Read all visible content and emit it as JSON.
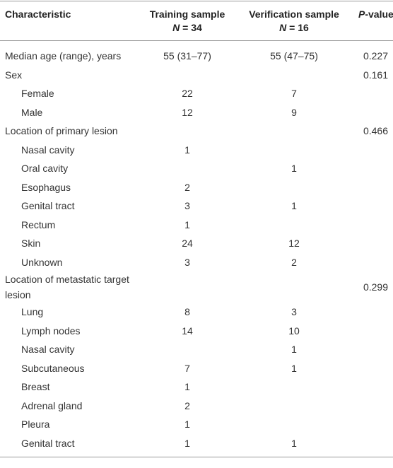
{
  "table": {
    "header": [
      {
        "title": "Characteristic"
      },
      {
        "title": "Training sample",
        "n_symbol": "N",
        "n_text": " = 34"
      },
      {
        "title": "Verification sample",
        "n_symbol": "N",
        "n_text": " = 16"
      },
      {
        "p_symbol": "P",
        "title": "-value"
      }
    ],
    "sections": [
      {
        "label": "Median age (range), years",
        "training": "55 (31–77)",
        "verification": "55 (47–75)",
        "p": "0.227"
      },
      {
        "label": "Sex",
        "p": "0.161",
        "items": [
          {
            "label": "Female",
            "training": "22",
            "verification": "7"
          },
          {
            "label": "Male",
            "training": "12",
            "verification": "9"
          }
        ]
      },
      {
        "label": "Location of primary lesion",
        "p": "0.466",
        "items": [
          {
            "label": "Nasal cavity",
            "training": "1"
          },
          {
            "label": "Oral cavity",
            "verification": "1"
          },
          {
            "label": "Esophagus",
            "training": "2"
          },
          {
            "label": "Genital tract",
            "training": "3",
            "verification": "1"
          },
          {
            "label": "Rectum",
            "training": "1"
          },
          {
            "label": "Skin",
            "training": "24",
            "verification": "12"
          },
          {
            "label": "Unknown",
            "training": "3",
            "verification": "2"
          }
        ]
      },
      {
        "label": "Location of metastatic target lesion",
        "p": "0.299",
        "items": [
          {
            "label": "Lung",
            "training": "8",
            "verification": "3"
          },
          {
            "label": "Lymph nodes",
            "training": "14",
            "verification": "10"
          },
          {
            "label": "Nasal cavity",
            "verification": "1"
          },
          {
            "label": "Subcutaneous",
            "training": "7",
            "verification": "1"
          },
          {
            "label": "Breast",
            "training": "1"
          },
          {
            "label": "Adrenal gland",
            "training": "2"
          },
          {
            "label": "Pleura",
            "training": "1"
          },
          {
            "label": "Genital tract",
            "training": "1",
            "verification": "1"
          }
        ]
      }
    ]
  }
}
